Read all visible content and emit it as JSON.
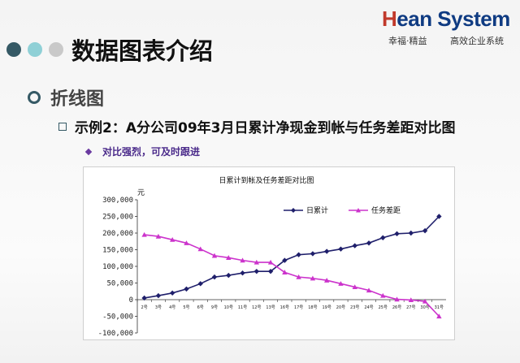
{
  "slide": {
    "title": "数据图表介绍",
    "level1": "折线图",
    "level2": "示例2：A分公司09年3月日累计净现金到帐与任务差距对比图",
    "level3": "对比强烈，可及时跟进"
  },
  "logo": {
    "brand_h": "H",
    "brand_rest": "ean System",
    "tagline_left": "幸福·精益",
    "tagline_right": "高效企业系统"
  },
  "colors": {
    "series_cumulative": "#1f1f6b",
    "series_gap": "#cc33cc",
    "accent_dark": "#355965",
    "accent_light": "#8fd0d6"
  },
  "chart_data": {
    "type": "line",
    "title": "日累计到帐及任务差距对比图",
    "ylabel": "元",
    "ylim": [
      -100000,
      300000
    ],
    "yticks": [
      -100000,
      -50000,
      0,
      50000,
      100000,
      150000,
      200000,
      250000,
      300000
    ],
    "ytick_labels": [
      "-100,000",
      "-50,000",
      "0",
      "50,000",
      "100,000",
      "150,000",
      "200,000",
      "250,000",
      "300,000"
    ],
    "legend_position": "top-right",
    "categories": [
      "2号",
      "3号",
      "4号",
      "5号",
      "6号",
      "9号",
      "10号",
      "11号",
      "12号",
      "13号",
      "16号",
      "17号",
      "18号",
      "19号",
      "20号",
      "23号",
      "24号",
      "25号",
      "26号",
      "27号",
      "30号",
      "31号"
    ],
    "series": [
      {
        "name": "日累计",
        "values": [
          5000,
          12000,
          20000,
          32000,
          48000,
          68000,
          73000,
          80000,
          85000,
          85000,
          118000,
          135000,
          138000,
          145000,
          152000,
          162000,
          170000,
          186000,
          198000,
          200000,
          207000,
          250000
        ]
      },
      {
        "name": "任务差距",
        "values": [
          195000,
          190000,
          180000,
          170000,
          152000,
          132000,
          126000,
          118000,
          112000,
          112000,
          82000,
          68000,
          64000,
          58000,
          48000,
          38000,
          28000,
          12000,
          1000,
          -1000,
          -5000,
          -50000
        ]
      }
    ]
  }
}
